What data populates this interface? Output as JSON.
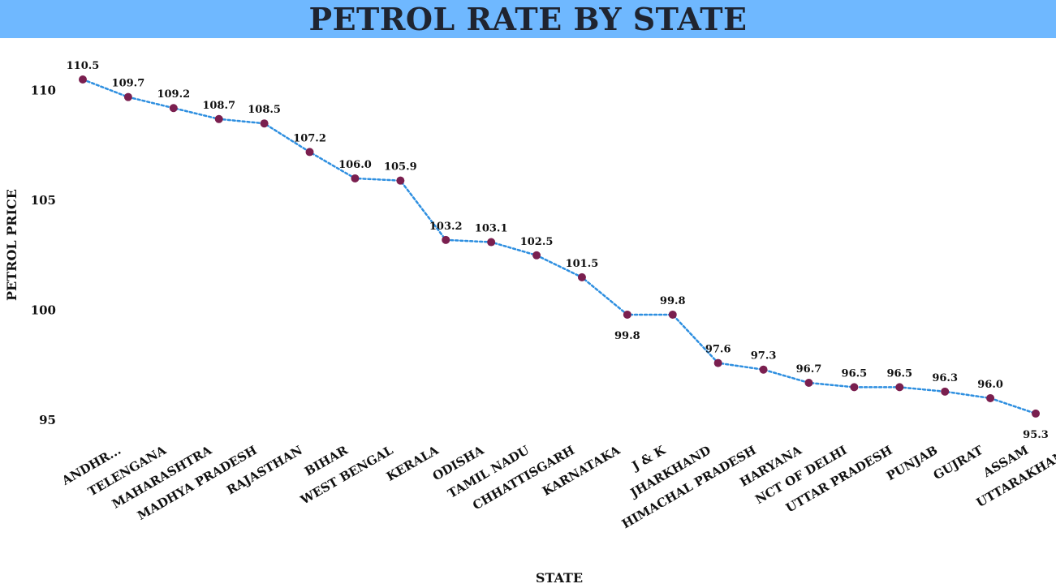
{
  "header": {
    "title": "PETROL RATE BY STATE"
  },
  "colors": {
    "title_bar": "#6fb8ff",
    "line": "#2e8fe0",
    "marker": "#7a1f4f"
  },
  "chart_data": {
    "type": "line",
    "title": "PETROL RATE BY STATE",
    "xlabel": "STATE",
    "ylabel": "PETROL PRICE",
    "ylim": [
      94.5,
      111.5
    ],
    "yticks": [
      95,
      100,
      105,
      110
    ],
    "grid": false,
    "legend": "none",
    "categories": [
      "ANDHR...",
      "TELENGANA",
      "MAHARASHTRA",
      "MADHYA PRADESH",
      "RAJASTHAN",
      "BIHAR",
      "WEST BENGAL",
      "KERALA",
      "ODISHA",
      "TAMIL NADU",
      "CHHATTISGARH",
      "KARNATAKA",
      "J & K",
      "JHARKHAND",
      "HIMACHAL PRADESH",
      "HARYANA",
      "NCT OF DELHI",
      "UTTAR PRADESH",
      "PUNJAB",
      "GUJRAT",
      "ASSAM",
      "UTTARAKHAND"
    ],
    "series": [
      {
        "values": [
          110.5,
          109.7,
          109.2,
          108.7,
          108.5,
          107.2,
          106.0,
          105.9,
          103.2,
          103.1,
          102.5,
          101.5,
          99.8,
          99.8,
          97.6,
          97.3,
          96.7,
          96.5,
          96.5,
          96.3,
          96.0,
          95.3
        ],
        "labels": [
          "110.5",
          "109.7",
          "109.2",
          "108.7",
          "108.5",
          "107.2",
          "106.0",
          "105.9",
          "103.2",
          "103.1",
          "102.5",
          "101.5",
          "99.8",
          "99.8",
          "97.6",
          "97.3",
          "96.7",
          "96.5",
          "96.5",
          "96.3",
          "96.0",
          "95.3"
        ],
        "label_below": [
          false,
          false,
          false,
          false,
          false,
          false,
          false,
          false,
          false,
          false,
          false,
          false,
          true,
          false,
          false,
          false,
          false,
          false,
          false,
          false,
          false,
          true
        ]
      }
    ]
  }
}
